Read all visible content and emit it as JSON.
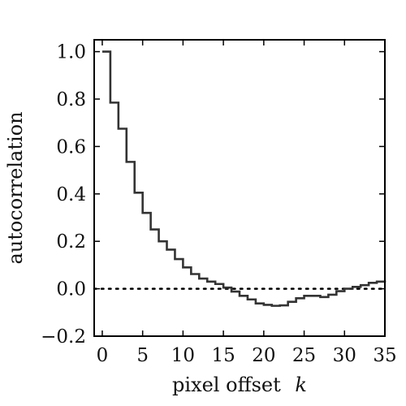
{
  "chart_data": {
    "type": "line",
    "step": "post",
    "xlabel": "pixel offset",
    "xlabel_var": "k",
    "ylabel": "autocorrelation",
    "xlim": [
      -1,
      35
    ],
    "ylim": [
      -0.2,
      1.05
    ],
    "xticks": [
      0,
      5,
      10,
      15,
      20,
      25,
      30,
      35
    ],
    "xtick_labels": [
      "0",
      "5",
      "10",
      "15",
      "20",
      "25",
      "30",
      "35"
    ],
    "yticks": [
      -0.2,
      0.0,
      0.2,
      0.4,
      0.6,
      0.8,
      1.0
    ],
    "ytick_labels": [
      "−0.2",
      "0.0",
      "0.2",
      "0.4",
      "0.6",
      "0.8",
      "1.0"
    ],
    "grid": false,
    "zero_line": {
      "y": 0,
      "style": "dotted",
      "color": "#000000"
    },
    "series": [
      {
        "color": "#333333",
        "x": [
          0,
          1,
          2,
          3,
          4,
          5,
          6,
          7,
          8,
          9,
          10,
          11,
          12,
          13,
          14,
          15,
          16,
          17,
          18,
          19,
          20,
          21,
          22,
          23,
          24,
          25,
          26,
          27,
          28,
          29,
          30,
          31,
          32,
          33,
          34,
          35
        ],
        "y": [
          1.0,
          0.785,
          0.675,
          0.535,
          0.405,
          0.32,
          0.25,
          0.2,
          0.165,
          0.125,
          0.09,
          0.062,
          0.043,
          0.03,
          0.02,
          0.005,
          -0.012,
          -0.03,
          -0.045,
          -0.062,
          -0.068,
          -0.072,
          -0.07,
          -0.055,
          -0.04,
          -0.03,
          -0.03,
          -0.035,
          -0.025,
          -0.01,
          0.0,
          0.008,
          0.015,
          0.025,
          0.03,
          0.035
        ]
      }
    ]
  }
}
